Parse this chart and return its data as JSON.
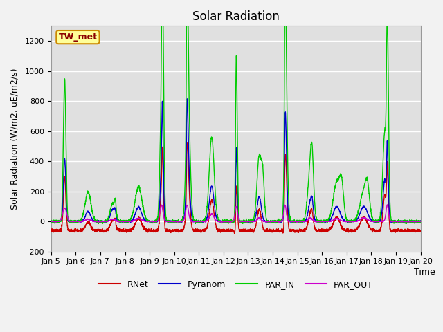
{
  "title": "Solar Radiation",
  "ylabel": "Solar Radiation (W/m2, uE/m2/s)",
  "xlabel": "Time",
  "ylim": [
    -200,
    1300
  ],
  "yticks": [
    -200,
    0,
    200,
    400,
    600,
    800,
    1000,
    1200
  ],
  "xlim_start": 5,
  "xlim_end": 20,
  "xtick_labels": [
    "Jan 5",
    "Jan 6",
    "Jan 7",
    "Jan 8",
    "Jan 9",
    "Jan 10",
    "Jan 11",
    "Jan 12",
    "Jan 13",
    "Jan 14",
    "Jan 15",
    "Jan 16",
    "Jan 17",
    "Jan 18",
    "Jan 19",
    "Jan 20"
  ],
  "xtick_positions": [
    5,
    6,
    7,
    8,
    9,
    10,
    11,
    12,
    13,
    14,
    15,
    16,
    17,
    18,
    19,
    20
  ],
  "series_colors": {
    "RNet": "#cc0000",
    "Pyranom": "#0000cc",
    "PAR_IN": "#00cc00",
    "PAR_OUT": "#cc00cc"
  },
  "legend_label": "TW_met",
  "legend_box_color": "#ffff99",
  "legend_box_edge": "#cc8800",
  "legend_text_color": "#8b0000",
  "plot_bg_color": "#e0e0e0",
  "fig_bg_color": "#f2f2f2",
  "grid_color": "#ffffff",
  "title_fontsize": 12,
  "axis_label_fontsize": 9,
  "tick_label_fontsize": 8,
  "line_width": 1.0
}
